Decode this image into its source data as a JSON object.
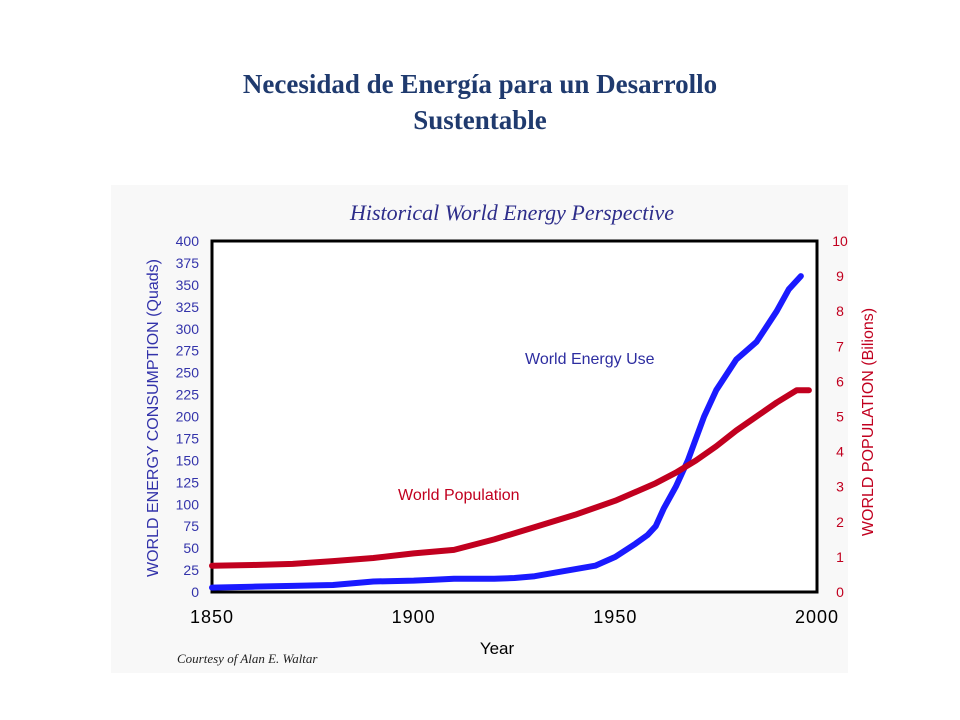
{
  "slide": {
    "title_line1": "Necesidad de Energía para un Desarrollo",
    "title_line2": "Sustentable",
    "credit": "Courtesy of Alan E. Waltar"
  },
  "colors": {
    "title": "#1f3a6e",
    "energy": "#1a1aff",
    "population": "#c1001f",
    "plot_title": "#2d2d8a",
    "left_axis": "#3333aa"
  },
  "chart_data": {
    "type": "line",
    "title": "Historical World Energy Perspective",
    "xlabel": "Year",
    "ylabel_left": "WORLD ENERGY CONSUMPTION (Quads)",
    "ylabel_right": "WORLD POPULATION (Bilions)",
    "xlim": [
      1850,
      2000
    ],
    "ylim_left": [
      0,
      400
    ],
    "ylim_right": [
      0,
      10
    ],
    "x_ticks": [
      "1850",
      "1900",
      "1950",
      "2000"
    ],
    "y_ticks_left": [
      "0",
      "25",
      "50",
      "75",
      "100",
      "125",
      "150",
      "175",
      "200",
      "225",
      "250",
      "275",
      "300",
      "325",
      "350",
      "375",
      "400"
    ],
    "y_ticks_right": [
      "0",
      "1",
      "2",
      "3",
      "4",
      "5",
      "6",
      "7",
      "8",
      "9",
      "10"
    ],
    "grid": false,
    "series": [
      {
        "name": "World Energy Use",
        "axis": "left",
        "x": [
          1850,
          1860,
          1870,
          1880,
          1885,
          1890,
          1900,
          1905,
          1910,
          1920,
          1925,
          1930,
          1935,
          1940,
          1945,
          1950,
          1955,
          1958,
          1960,
          1962,
          1965,
          1968,
          1970,
          1972,
          1975,
          1980,
          1985,
          1990,
          1993,
          1996
        ],
        "y": [
          5,
          6,
          7,
          8,
          10,
          12,
          13,
          14,
          15,
          15,
          16,
          18,
          22,
          26,
          30,
          40,
          55,
          65,
          75,
          95,
          120,
          150,
          175,
          200,
          230,
          265,
          285,
          320,
          345,
          360
        ]
      },
      {
        "name": "World Population",
        "axis": "right",
        "x": [
          1850,
          1860,
          1870,
          1880,
          1890,
          1900,
          1910,
          1920,
          1930,
          1940,
          1950,
          1955,
          1960,
          1965,
          1970,
          1975,
          1980,
          1985,
          1990,
          1995,
          1998
        ],
        "y": [
          0.75,
          0.77,
          0.8,
          0.88,
          0.97,
          1.1,
          1.2,
          1.5,
          1.85,
          2.2,
          2.6,
          2.85,
          3.1,
          3.4,
          3.75,
          4.15,
          4.6,
          5.0,
          5.4,
          5.75,
          5.75
        ]
      }
    ]
  }
}
